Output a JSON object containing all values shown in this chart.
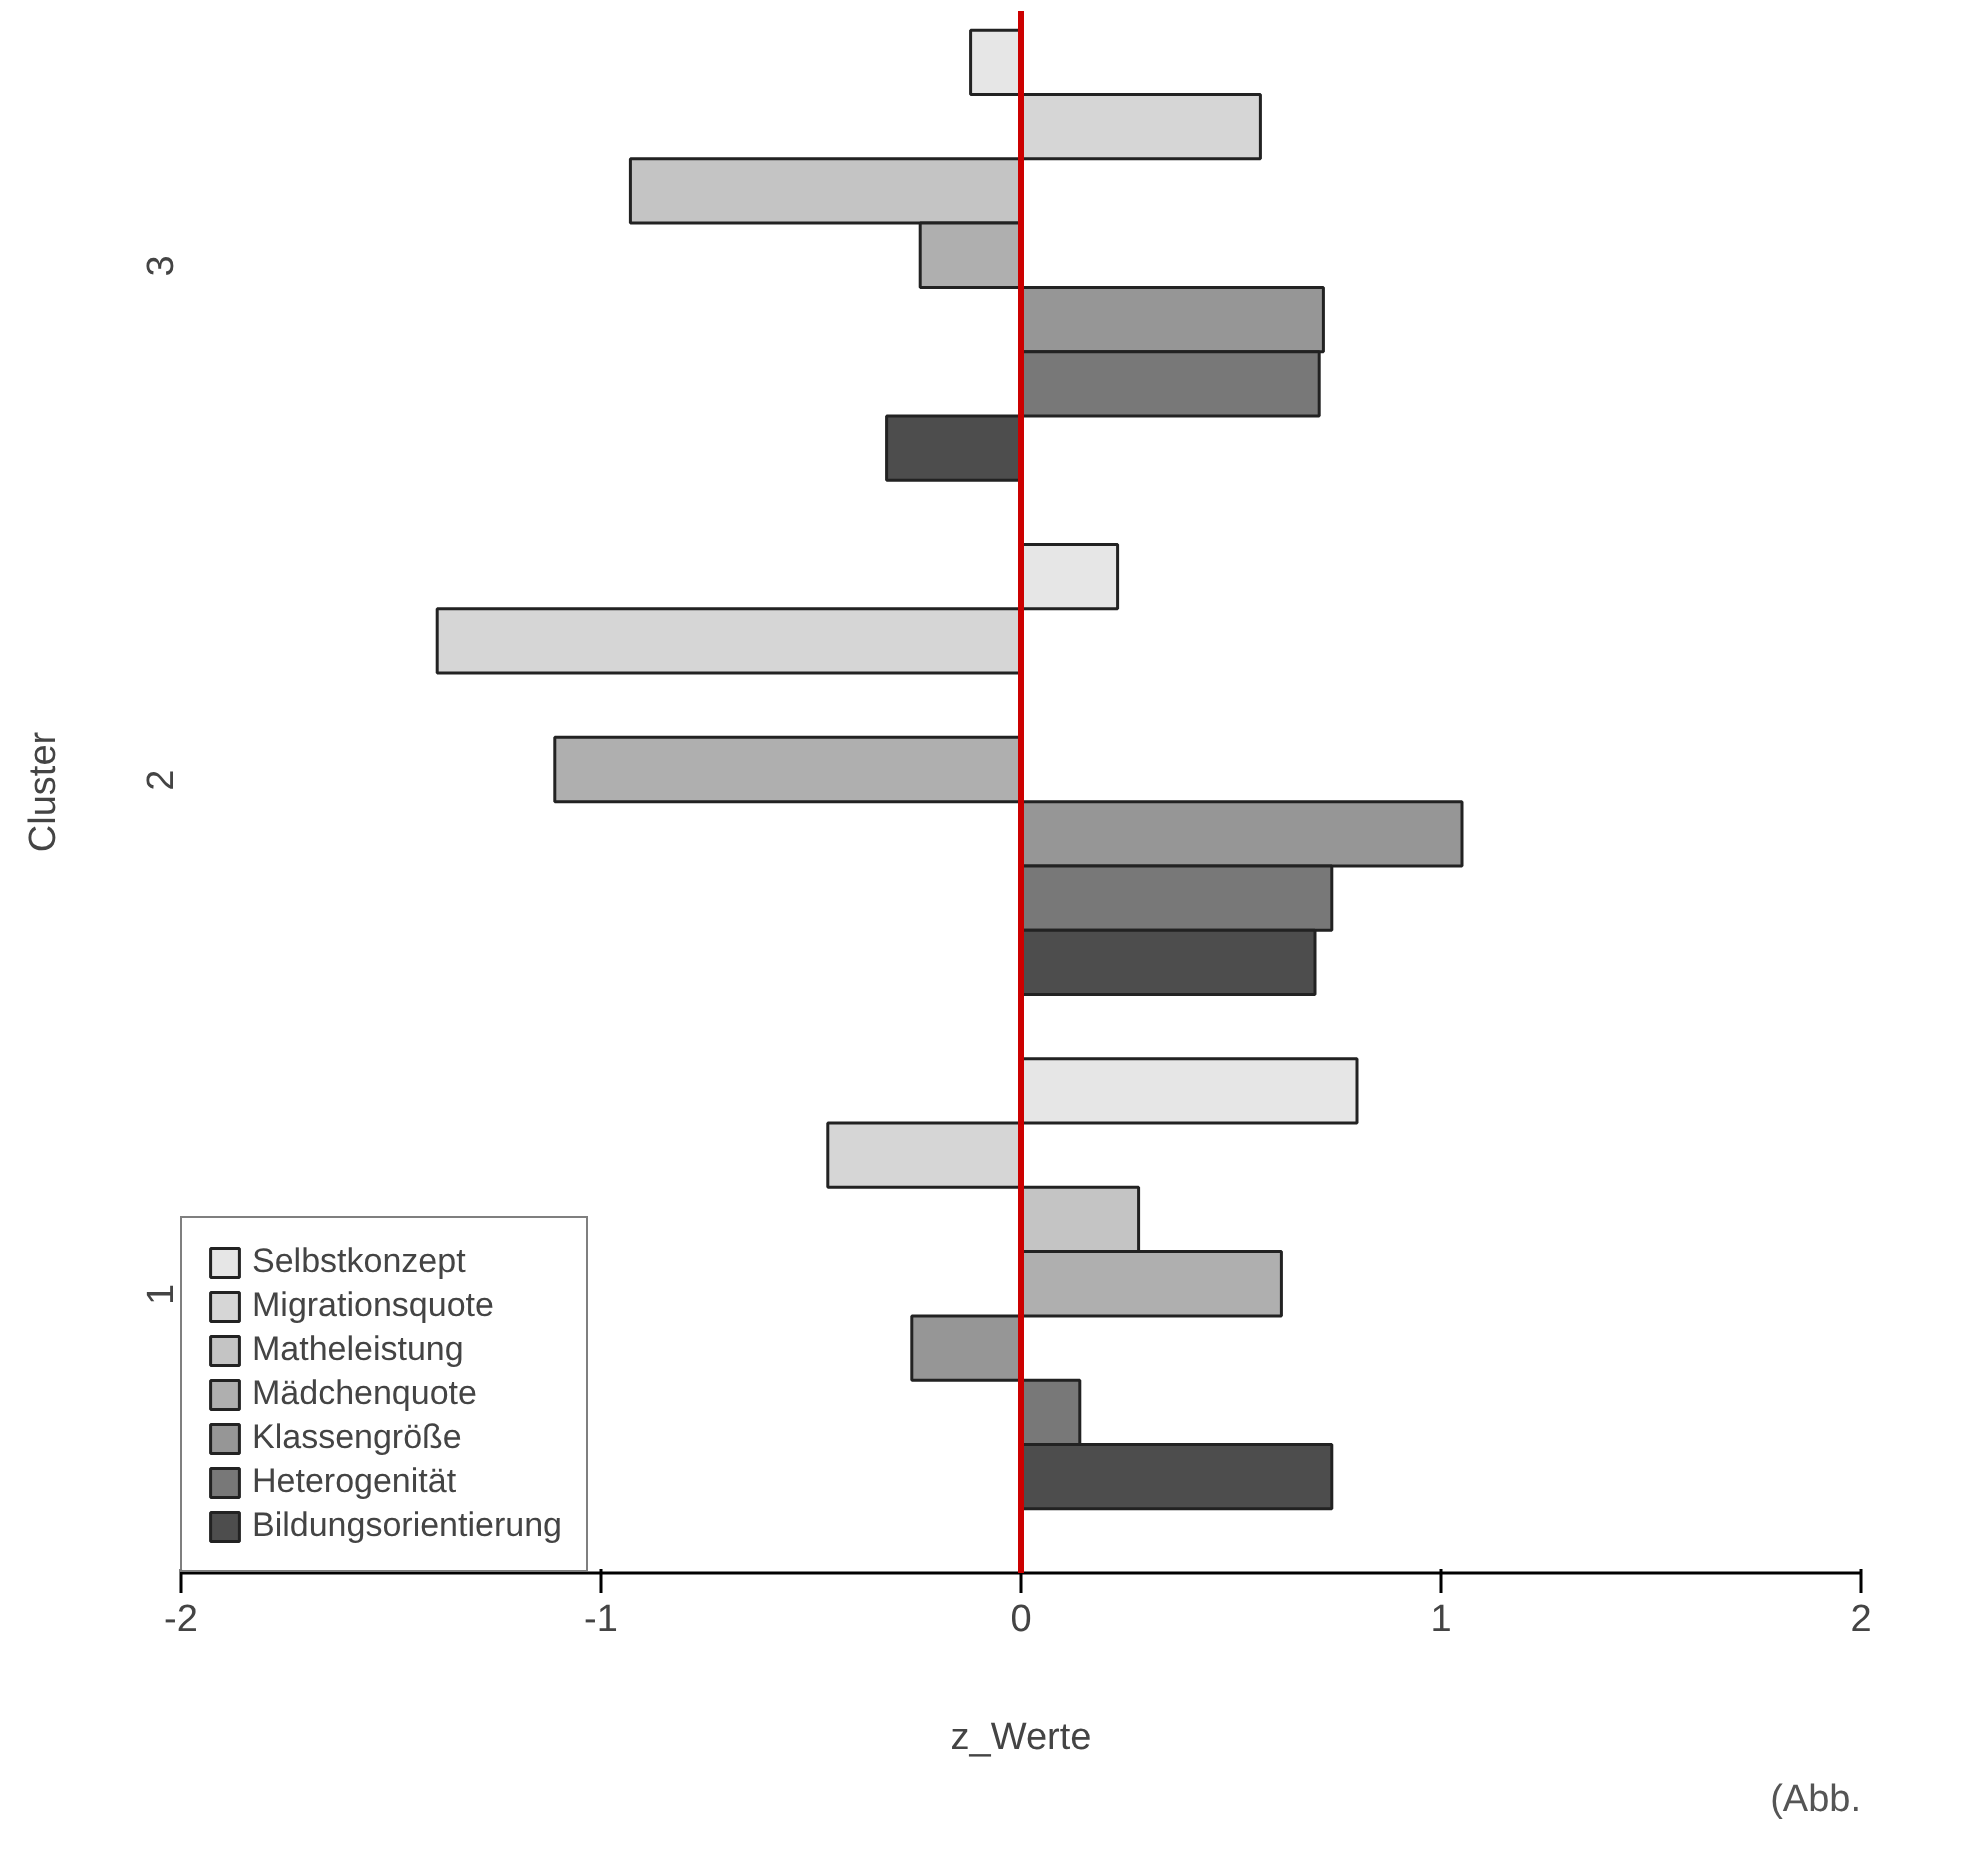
{
  "chart_data": {
    "type": "bar",
    "orientation": "horizontal",
    "xlabel": "z_Werte",
    "ylabel": "Cluster",
    "categories": [
      "3",
      "2",
      "1"
    ],
    "series": [
      {
        "name": "Selbstkonzept",
        "color": "#e6e6e6",
        "values": [
          -0.12,
          0.23,
          0.8
        ]
      },
      {
        "name": "Migrationsquote",
        "color": "#d6d6d6",
        "values": [
          0.57,
          -1.39,
          -0.46
        ]
      },
      {
        "name": "Matheleistung",
        "color": "#c4c4c4",
        "values": [
          -0.93,
          null,
          0.28
        ]
      },
      {
        "name": "Mädchenquote",
        "color": "#afafaf",
        "values": [
          -0.24,
          -1.11,
          0.62
        ]
      },
      {
        "name": "Klassengröße",
        "color": "#969696",
        "values": [
          0.72,
          1.05,
          -0.26
        ]
      },
      {
        "name": "Heterogenität",
        "color": "#787878",
        "values": [
          0.71,
          0.74,
          0.14
        ]
      },
      {
        "name": "Bildungsorientierung",
        "color": "#4d4d4d",
        "values": [
          -0.32,
          0.7,
          0.74
        ]
      }
    ],
    "xlim": [
      -2,
      2
    ],
    "xticks": [
      -2,
      -1,
      0,
      1,
      2
    ],
    "grid": false,
    "legend": "bottom left",
    "ref_lines": [
      {
        "axis": "x",
        "value": 0,
        "color": "#cc0000"
      }
    ],
    "annotations": [
      "(Abb."
    ]
  }
}
